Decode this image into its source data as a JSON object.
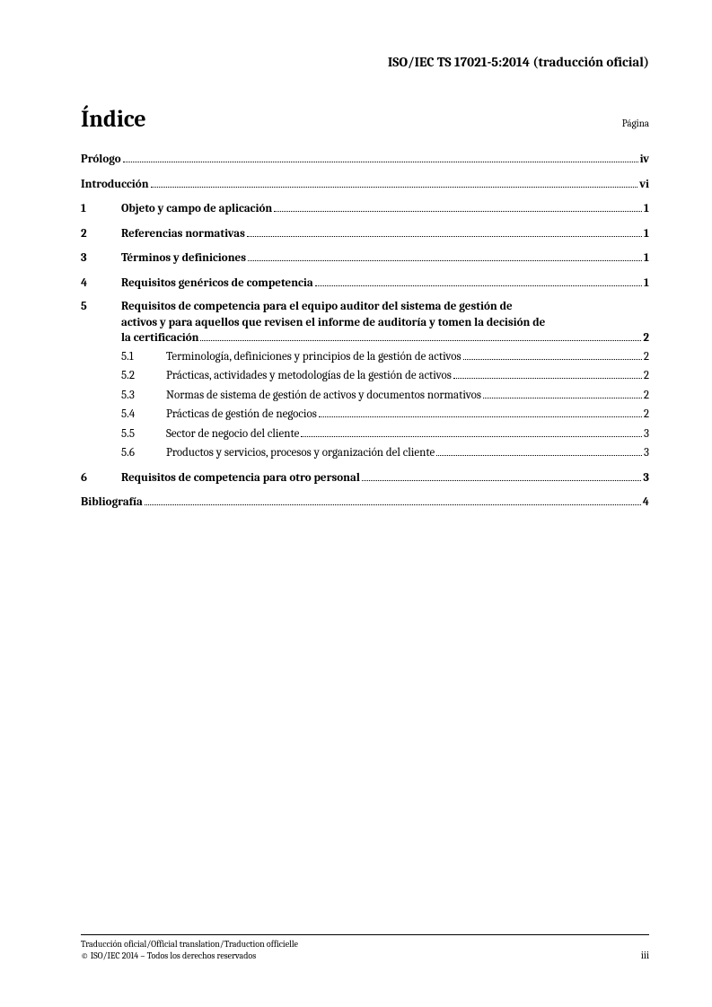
{
  "header": "ISO/IEC TS 17021-5:2014 (traducción oficial)",
  "title": "Índice",
  "pagina_label": "Página",
  "entries": {
    "prologo": {
      "title": "Prólogo",
      "page": "iv"
    },
    "introduccion": {
      "title": "Introducción",
      "page": "vi"
    },
    "s1": {
      "num": "1",
      "title": "Objeto y campo de aplicación",
      "page": "1"
    },
    "s2": {
      "num": "2",
      "title": "Referencias normativas",
      "page": "1"
    },
    "s3": {
      "num": "3",
      "title": "Términos y definiciones",
      "page": "1"
    },
    "s4": {
      "num": "4",
      "title": "Requisitos genéricos de competencia",
      "page": "1"
    },
    "s5": {
      "num": "5",
      "title_line1": "Requisitos de competencia para el equipo auditor del sistema de gestión de",
      "title_line2": "activos y para aquellos que revisen el informe de auditoría y tomen la decisión de",
      "title_line3": "la certificación",
      "page": "2"
    },
    "s51": {
      "num": "5.1",
      "title": "Terminología, definiciones y principios de la gestión de activos",
      "page": "2"
    },
    "s52": {
      "num": "5.2",
      "title": "Prácticas, actividades y metodologías de la gestión de activos",
      "page": "2"
    },
    "s53": {
      "num": "5.3",
      "title": "Normas de sistema de gestión de activos y documentos normativos",
      "page": "2"
    },
    "s54": {
      "num": "5.4",
      "title": "Prácticas de gestión de negocios",
      "page": "2"
    },
    "s55": {
      "num": "5.5",
      "title": "Sector de negocio del cliente",
      "page": "3"
    },
    "s56": {
      "num": "5.6",
      "title": "Productos y servicios, procesos y organización del cliente",
      "page": "3"
    },
    "s6": {
      "num": "6",
      "title": "Requisitos de competencia para otro personal",
      "page": "3"
    },
    "biblio": {
      "title": "Bibliografía",
      "page": "4"
    }
  },
  "footer": {
    "line1": "Traducción oficial/Official translation/Traduction officielle",
    "line2": "© ISO/IEC 2014 – Todos los derechos reservados",
    "page_num": "iii"
  }
}
